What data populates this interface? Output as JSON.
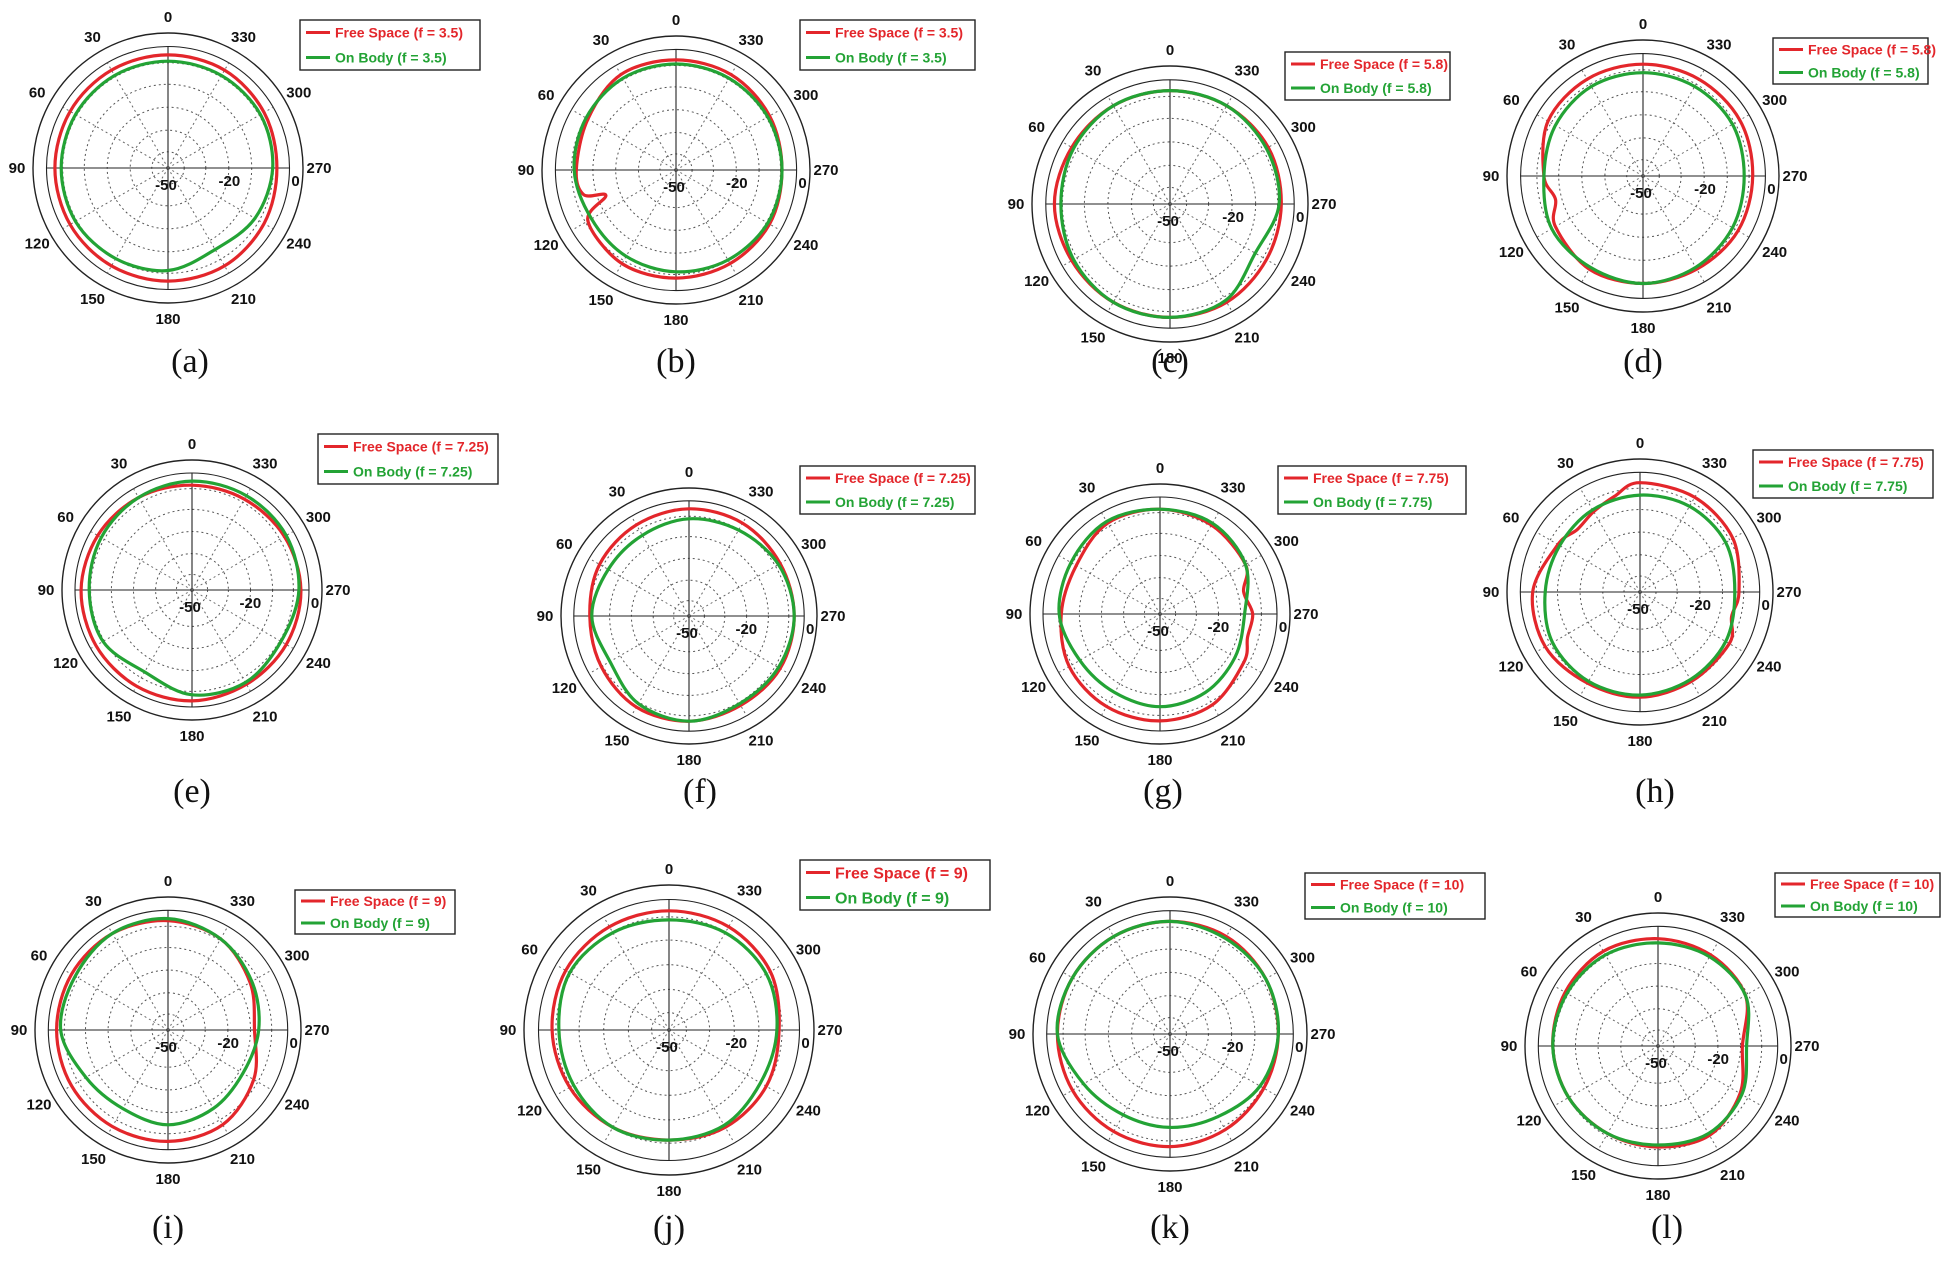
{
  "colors": {
    "free_space": "#e3262b",
    "on_body": "#23a335"
  },
  "chart_data": [
    {
      "type": "polar",
      "caption": "(a)",
      "angle_labels": [
        "0",
        "30",
        "60",
        "90",
        "120",
        "150",
        "180",
        "210",
        "240",
        "270",
        "300",
        "330"
      ],
      "radial_labels": [
        "-50",
        "-20",
        "0"
      ],
      "rlim": [
        -50,
        0
      ],
      "legend": {
        "placement": "top-right"
      },
      "series": [
        {
          "name": "Free Space (f = 3.5)",
          "angles": [
            0,
            30,
            60,
            90,
            120,
            150,
            180,
            210,
            240,
            270,
            300,
            330
          ],
          "values": [
            -4,
            -4,
            -4,
            -4,
            -4,
            -4,
            -4,
            -4,
            -5,
            -6,
            -5,
            -4
          ]
        },
        {
          "name": "On Body (f = 3.5)",
          "angles": [
            0,
            30,
            60,
            90,
            120,
            150,
            180,
            210,
            240,
            270,
            300,
            330
          ],
          "values": [
            -7,
            -7,
            -7,
            -7,
            -7,
            -8,
            -9,
            -13,
            -10,
            -8,
            -7,
            -7
          ]
        }
      ]
    },
    {
      "type": "polar",
      "caption": "(b)",
      "angle_labels": [
        "0",
        "30",
        "60",
        "90",
        "120",
        "150",
        "180",
        "210",
        "240",
        "270",
        "300",
        "330"
      ],
      "radial_labels": [
        "-50",
        "-20",
        "0"
      ],
      "rlim": [
        -50,
        0
      ],
      "legend": {
        "placement": "top-right"
      },
      "series": [
        {
          "name": "Free Space (f = 3.5)",
          "angles": [
            0,
            30,
            60,
            90,
            105,
            110,
            120,
            150,
            180,
            210,
            240,
            270,
            300,
            330
          ],
          "values": [
            -5,
            -5,
            -9,
            -10,
            -12,
            -22,
            -9,
            -6,
            -6,
            -6,
            -6,
            -7,
            -6,
            -5
          ]
        },
        {
          "name": "On Body (f = 3.5)",
          "angles": [
            0,
            30,
            60,
            90,
            120,
            150,
            180,
            210,
            240,
            270,
            300,
            330
          ],
          "values": [
            -7,
            -7,
            -8,
            -9,
            -11,
            -10,
            -9,
            -8,
            -7,
            -7,
            -7,
            -7
          ]
        }
      ]
    },
    {
      "type": "polar",
      "caption": "(c)",
      "angle_labels": [
        "0",
        "30",
        "60",
        "90",
        "120",
        "150",
        "180",
        "210",
        "240",
        "270",
        "300",
        "330"
      ],
      "radial_labels": [
        "-50",
        "-20",
        "0"
      ],
      "rlim": [
        -50,
        0
      ],
      "legend": {
        "placement": "top-right"
      },
      "series": [
        {
          "name": "Free Space (f = 5.8)",
          "angles": [
            0,
            30,
            60,
            90,
            120,
            150,
            180,
            210,
            240,
            270,
            300,
            330
          ],
          "values": [
            -5,
            -5,
            -5,
            -4,
            -5,
            -5,
            -5,
            -5,
            -6,
            -6,
            -5,
            -5
          ]
        },
        {
          "name": "On Body (f = 5.8)",
          "angles": [
            0,
            30,
            60,
            90,
            120,
            150,
            180,
            210,
            240,
            270,
            300,
            330
          ],
          "values": [
            -5,
            -5,
            -6,
            -7,
            -6,
            -5,
            -5,
            -6,
            -12,
            -7,
            -6,
            -5
          ]
        }
      ]
    },
    {
      "type": "polar",
      "caption": "(d)",
      "angle_labels": [
        "0",
        "30",
        "60",
        "90",
        "120",
        "150",
        "180",
        "210",
        "240",
        "270",
        "300",
        "330"
      ],
      "radial_labels": [
        "-50",
        "-20",
        "0"
      ],
      "rlim": [
        -50,
        0
      ],
      "legend": {
        "placement": "top-right"
      },
      "series": [
        {
          "name": "Free Space (f = 5.8)",
          "angles": [
            0,
            30,
            60,
            90,
            105,
            120,
            150,
            180,
            210,
            240,
            270,
            300,
            330
          ],
          "values": [
            -5,
            -5,
            -6,
            -11,
            -15,
            -10,
            -7,
            -7,
            -7,
            -6,
            -6,
            -5,
            -5
          ]
        },
        {
          "name": "On Body (f = 5.8)",
          "angles": [
            0,
            30,
            60,
            90,
            120,
            150,
            180,
            210,
            240,
            270,
            300,
            330
          ],
          "values": [
            -9,
            -9,
            -10,
            -11,
            -8,
            -8,
            -7,
            -8,
            -9,
            -10,
            -9,
            -9
          ]
        }
      ]
    },
    {
      "type": "polar",
      "caption": "(e)",
      "angle_labels": [
        "0",
        "30",
        "60",
        "90",
        "120",
        "150",
        "180",
        "210",
        "240",
        "270",
        "300",
        "330"
      ],
      "radial_labels": [
        "-50",
        "-20",
        "0"
      ],
      "rlim": [
        -50,
        0
      ],
      "legend": {
        "placement": "top-right"
      },
      "series": [
        {
          "name": "Free Space (f = 7.25)",
          "angles": [
            0,
            30,
            60,
            90,
            120,
            150,
            180,
            210,
            240,
            270,
            300,
            330
          ],
          "values": [
            -6,
            -5,
            -4,
            -3,
            -3,
            -3,
            -3,
            -4,
            -4,
            -4,
            -5,
            -6
          ]
        },
        {
          "name": "On Body (f = 7.25)",
          "angles": [
            0,
            30,
            60,
            90,
            120,
            150,
            180,
            210,
            240,
            270,
            300,
            330
          ],
          "values": [
            -4,
            -5,
            -6,
            -7,
            -7,
            -11,
            -6,
            -5,
            -7,
            -5,
            -4,
            -4
          ]
        }
      ]
    },
    {
      "type": "polar",
      "caption": "(f)",
      "angle_labels": [
        "0",
        "30",
        "60",
        "90",
        "120",
        "150",
        "180",
        "210",
        "240",
        "270",
        "300",
        "330"
      ],
      "radial_labels": [
        "-50",
        "-20",
        "0"
      ],
      "rlim": [
        -50,
        0
      ],
      "legend": {
        "placement": "top-right"
      },
      "series": [
        {
          "name": "Free Space (f = 7.25)",
          "angles": [
            0,
            30,
            60,
            90,
            120,
            150,
            180,
            210,
            240,
            270,
            300,
            330
          ],
          "values": [
            -4,
            -5,
            -6,
            -8,
            -7,
            -5,
            -5,
            -6,
            -5,
            -5,
            -5,
            -4
          ]
        },
        {
          "name": "On Body (f = 7.25)",
          "angles": [
            0,
            30,
            60,
            90,
            120,
            150,
            180,
            210,
            240,
            270,
            300,
            330
          ],
          "values": [
            -9,
            -11,
            -11,
            -9,
            -12,
            -7,
            -5,
            -7,
            -6,
            -5,
            -6,
            -8
          ]
        }
      ]
    },
    {
      "type": "polar",
      "caption": "(g)",
      "angle_labels": [
        "0",
        "30",
        "60",
        "90",
        "120",
        "150",
        "180",
        "210",
        "240",
        "270",
        "300",
        "330"
      ],
      "radial_labels": [
        "-50",
        "-20",
        "0"
      ],
      "rlim": [
        -50,
        0
      ],
      "legend": {
        "placement": "top-right"
      },
      "series": [
        {
          "name": "Free Space (f = 7.75)",
          "angles": [
            0,
            30,
            60,
            90,
            120,
            150,
            180,
            210,
            240,
            255,
            270,
            285,
            300,
            330
          ],
          "values": [
            -6,
            -6,
            -10,
            -9,
            -6,
            -5,
            -5,
            -6,
            -10,
            -13,
            -12,
            -15,
            -9,
            -7
          ]
        },
        {
          "name": "On Body (f = 7.75)",
          "angles": [
            0,
            30,
            60,
            90,
            120,
            150,
            180,
            210,
            240,
            270,
            300,
            330
          ],
          "values": [
            -6,
            -5,
            -7,
            -8,
            -12,
            -13,
            -12,
            -13,
            -15,
            -16,
            -9,
            -6
          ]
        }
      ]
    },
    {
      "type": "polar",
      "caption": "(h)",
      "angle_labels": [
        "0",
        "30",
        "60",
        "90",
        "120",
        "150",
        "180",
        "210",
        "240",
        "270",
        "300",
        "330"
      ],
      "radial_labels": [
        "-50",
        "-20",
        "0"
      ],
      "rlim": [
        -50,
        0
      ],
      "legend": {
        "placement": "top-right"
      },
      "series": [
        {
          "name": "Free Space (f = 7.75)",
          "angles": [
            0,
            15,
            30,
            45,
            60,
            90,
            120,
            150,
            180,
            210,
            240,
            255,
            270,
            300,
            330
          ],
          "values": [
            -5,
            -10,
            -13,
            -15,
            -12,
            -6,
            -5,
            -7,
            -7,
            -8,
            -8,
            -12,
            -10,
            -6,
            -5
          ]
        },
        {
          "name": "On Body (f = 7.75)",
          "angles": [
            0,
            30,
            60,
            90,
            120,
            150,
            180,
            210,
            240,
            270,
            300,
            330
          ],
          "values": [
            -11,
            -12,
            -13,
            -12,
            -9,
            -8,
            -8,
            -9,
            -10,
            -12,
            -10,
            -10
          ]
        }
      ]
    },
    {
      "type": "polar",
      "caption": "(i)",
      "angle_labels": [
        "0",
        "30",
        "60",
        "90",
        "120",
        "150",
        "180",
        "210",
        "240",
        "270",
        "300",
        "330"
      ],
      "radial_labels": [
        "-50",
        "-20",
        "0"
      ],
      "rlim": [
        -50,
        0
      ],
      "legend": {
        "placement": "top-right"
      },
      "series": [
        {
          "name": "Free Space (f = 9)",
          "angles": [
            0,
            30,
            60,
            90,
            120,
            150,
            180,
            210,
            240,
            270,
            300,
            330
          ],
          "values": [
            -5,
            -4,
            -4,
            -4,
            -4,
            -4,
            -4,
            -5,
            -10,
            -16,
            -12,
            -7
          ]
        },
        {
          "name": "On Body (f = 9)",
          "angles": [
            0,
            30,
            60,
            90,
            120,
            150,
            180,
            210,
            240,
            270,
            300,
            330
          ],
          "values": [
            -4,
            -4,
            -6,
            -6,
            -12,
            -14,
            -12,
            -14,
            -16,
            -14,
            -11,
            -7
          ]
        }
      ]
    },
    {
      "type": "polar",
      "caption": "(j)",
      "angle_labels": [
        "0",
        "30",
        "60",
        "90",
        "120",
        "150",
        "180",
        "210",
        "240",
        "270",
        "300",
        "330"
      ],
      "radial_labels": [
        "-50",
        "-20",
        "0"
      ],
      "rlim": [
        -50,
        0
      ],
      "legend": {
        "placement": "top-right"
      },
      "series": [
        {
          "name": "Free Space (f = 9)",
          "angles": [
            0,
            30,
            60,
            90,
            120,
            150,
            180,
            210,
            240,
            270,
            300,
            330
          ],
          "values": [
            -5,
            -5,
            -5,
            -6,
            -7,
            -8,
            -9,
            -8,
            -8,
            -9,
            -6,
            -5
          ]
        },
        {
          "name": "On Body (f = 9)",
          "angles": [
            0,
            30,
            60,
            90,
            120,
            150,
            180,
            210,
            240,
            270,
            300,
            330
          ],
          "values": [
            -9,
            -8,
            -7,
            -9,
            -9,
            -8,
            -9,
            -9,
            -11,
            -10,
            -8,
            -8
          ]
        }
      ]
    },
    {
      "type": "polar",
      "caption": "(k)",
      "angle_labels": [
        "0",
        "30",
        "60",
        "90",
        "120",
        "150",
        "180",
        "210",
        "240",
        "270",
        "300",
        "330"
      ],
      "radial_labels": [
        "-50",
        "-20",
        "0"
      ],
      "rlim": [
        -50,
        0
      ],
      "legend": {
        "placement": "top-right"
      },
      "series": [
        {
          "name": "Free Space (f = 10)",
          "angles": [
            0,
            30,
            60,
            90,
            120,
            150,
            180,
            210,
            240,
            270,
            300,
            330
          ],
          "values": [
            -5,
            -5,
            -5,
            -5,
            -5,
            -5,
            -5,
            -6,
            -7,
            -7,
            -6,
            -5
          ]
        },
        {
          "name": "On Body (f = 10)",
          "angles": [
            0,
            30,
            60,
            90,
            120,
            150,
            180,
            210,
            240,
            270,
            300,
            330
          ],
          "values": [
            -5,
            -5,
            -5,
            -5,
            -11,
            -14,
            -14,
            -13,
            -9,
            -7,
            -6,
            -6
          ]
        }
      ]
    },
    {
      "type": "polar",
      "caption": "(l)",
      "angle_labels": [
        "0",
        "30",
        "60",
        "90",
        "120",
        "150",
        "180",
        "210",
        "240",
        "270",
        "300",
        "330"
      ],
      "radial_labels": [
        "-50",
        "-20",
        "0"
      ],
      "rlim": [
        -50,
        0
      ],
      "legend": {
        "placement": "top-right"
      },
      "series": [
        {
          "name": "Free Space (f = 10)",
          "angles": [
            0,
            30,
            60,
            90,
            120,
            150,
            180,
            210,
            240,
            270,
            300,
            330
          ],
          "values": [
            -6,
            -5,
            -6,
            -7,
            -8,
            -9,
            -9,
            -8,
            -12,
            -17,
            -9,
            -7
          ]
        },
        {
          "name": "On Body (f = 10)",
          "angles": [
            0,
            30,
            60,
            90,
            120,
            150,
            180,
            210,
            240,
            270,
            300,
            330
          ],
          "values": [
            -8,
            -7,
            -7,
            -7,
            -8,
            -9,
            -10,
            -9,
            -11,
            -15,
            -9,
            -8
          ]
        }
      ]
    }
  ]
}
